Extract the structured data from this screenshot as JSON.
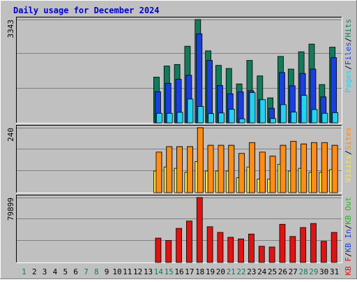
{
  "chart_data": {
    "type": "bar",
    "title": "Daily usage for December 2024",
    "colors": {
      "background": "#c0c0c0",
      "title": "#0000cc",
      "hits": "#137a5b",
      "files": "#1a3fe0",
      "pages": "#22d3f0",
      "visits": "#f2e64a",
      "sites": "#ff8c14",
      "kb_in": "#1a3fe0",
      "kb_out": "#27b527",
      "kb_f": "#e01212",
      "weekend_day": "#137a5b",
      "weekday": "#000000"
    },
    "x": [
      "1",
      "2",
      "3",
      "4",
      "5",
      "6",
      "7",
      "8",
      "9",
      "10",
      "11",
      "12",
      "13",
      "14",
      "15",
      "16",
      "17",
      "18",
      "19",
      "20",
      "21",
      "22",
      "23",
      "24",
      "25",
      "26",
      "27",
      "28",
      "29",
      "30",
      "31"
    ],
    "weekend_days": [
      "1",
      "7",
      "8",
      "14",
      "15",
      "21",
      "22",
      "28",
      "29"
    ],
    "panels": [
      {
        "max_label": "3343",
        "ylim": [
          0,
          3343
        ],
        "legend": [
          {
            "text": "Pages",
            "color": "#22d3f0"
          },
          {
            "text": "/",
            "color": "#000000"
          },
          {
            "text": "Files",
            "color": "#1a3fe0"
          },
          {
            "text": "/",
            "color": "#000000"
          },
          {
            "text": "Hits",
            "color": "#137a5b"
          }
        ],
        "series": [
          {
            "name": "Hits",
            "values": [
              0,
              0,
              0,
              0,
              0,
              0,
              0,
              0,
              0,
              0,
              0,
              0,
              0,
              1480,
              1840,
              1890,
              2480,
              3343,
              2330,
              1860,
              1760,
              1260,
              2020,
              1520,
              810,
              2150,
              1740,
              2300,
              2550,
              1240,
              2450
            ]
          },
          {
            "name": "Files",
            "values": [
              0,
              0,
              0,
              0,
              0,
              0,
              0,
              0,
              0,
              0,
              0,
              0,
              0,
              1010,
              1280,
              1410,
              1540,
              2880,
              2020,
              1210,
              940,
              1000,
              1040,
              750,
              470,
              1630,
              1200,
              1600,
              1740,
              840,
              2110
            ]
          },
          {
            "name": "Pages",
            "values": [
              0,
              0,
              0,
              0,
              0,
              0,
              0,
              0,
              0,
              0,
              0,
              0,
              0,
              310,
              310,
              340,
              770,
              530,
              300,
              320,
              440,
              130,
              980,
              750,
              140,
              590,
              350,
              890,
              430,
              310,
              330
            ]
          }
        ]
      },
      {
        "max_label": "240",
        "ylim": [
          0,
          240
        ],
        "legend": [
          {
            "text": "Visits",
            "color": "#f2e64a"
          },
          {
            "text": "/",
            "color": "#000000"
          },
          {
            "text": "Sites",
            "color": "#ff8c14"
          }
        ],
        "series": [
          {
            "name": "Sites",
            "values": [
              0,
              0,
              0,
              0,
              0,
              0,
              0,
              0,
              0,
              0,
              0,
              0,
              0,
              150,
              170,
              170,
              170,
              240,
              175,
              175,
              175,
              145,
              185,
              150,
              135,
              175,
              190,
              180,
              185,
              185,
              175
            ]
          },
          {
            "name": "Visits",
            "values": [
              0,
              0,
              0,
              0,
              0,
              0,
              0,
              0,
              0,
              0,
              0,
              0,
              0,
              80,
              95,
              90,
              75,
              115,
              80,
              80,
              80,
              55,
              95,
              50,
              50,
              105,
              80,
              90,
              75,
              75,
              85
            ]
          }
        ]
      },
      {
        "max_label": "79899",
        "ylim": [
          0,
          79899
        ],
        "legend": [
          {
            "text": "KB F",
            "color": "#e01212"
          },
          {
            "text": "/",
            "color": "#000000"
          },
          {
            "text": "KB In",
            "color": "#1a3fe0"
          },
          {
            "text": "/",
            "color": "#000000"
          },
          {
            "text": "KB Out",
            "color": "#27b527"
          }
        ],
        "series": [
          {
            "name": "KB F",
            "values": [
              0,
              0,
              0,
              0,
              0,
              0,
              0,
              0,
              0,
              0,
              0,
              0,
              0,
              30000,
              27000,
              42000,
              51000,
              79899,
              44000,
              37000,
              31000,
              29000,
              35000,
              20000,
              19000,
              47000,
              32000,
              43000,
              48000,
              26000,
              37000
            ]
          }
        ]
      }
    ]
  }
}
